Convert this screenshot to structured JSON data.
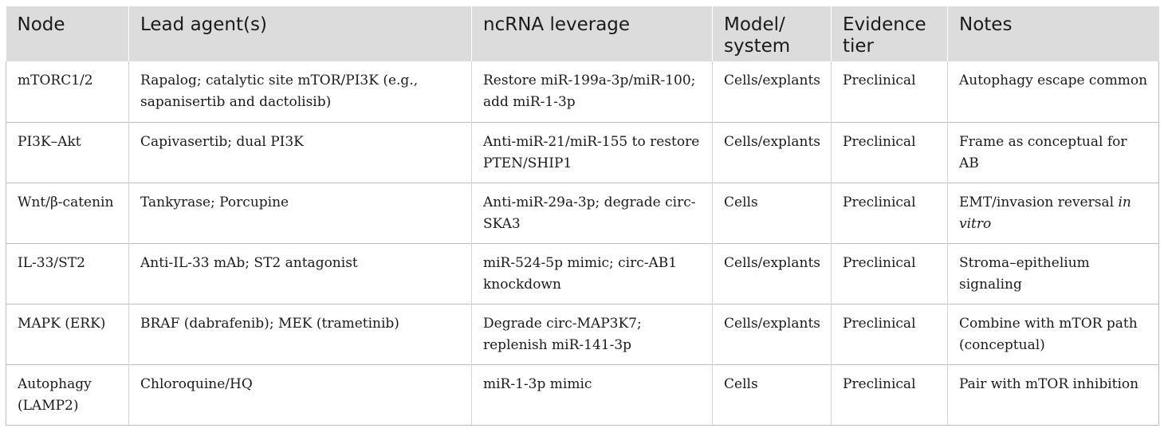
{
  "table": {
    "headers": [
      "Node",
      "Lead agent(s)",
      "ncRNA leverage",
      "Model/ system",
      "Evidence tier",
      "Notes"
    ],
    "rows": [
      {
        "node": "mTORC1/2",
        "lead_agents": "Rapalog; catalytic site mTOR/PI3K (e.g., sapanisertib and dactolisib)",
        "ncrna": "Restore miR-199a-3p/miR-100; add miR-1-3p",
        "model": "Cells/explants",
        "evidence": "Preclinical",
        "notes": "Autophagy escape common"
      },
      {
        "node": "PI3K–Akt",
        "lead_agents": "Capivasertib; dual PI3K",
        "ncrna": "Anti-miR-21/miR-155 to restore PTEN/SHIP1",
        "model": "Cells/explants",
        "evidence": "Preclinical",
        "notes": "Frame as conceptual for AB"
      },
      {
        "node": "Wnt/β-catenin",
        "lead_agents": "Tankyrase; Porcupine",
        "ncrna": "Anti-miR-29a-3p; degrade circ-SKA3",
        "model": "Cells",
        "evidence": "Preclinical",
        "notes": "EMT/invasion reversal ",
        "notes_italic": "in vitro"
      },
      {
        "node": "IL-33/ST2",
        "lead_agents": "Anti-IL-33 mAb; ST2 antagonist",
        "ncrna": "miR-524-5p mimic; circ-AB1 knockdown",
        "model": "Cells/explants",
        "evidence": "Preclinical",
        "notes": "Stroma–epithelium signaling"
      },
      {
        "node": "MAPK (ERK)",
        "lead_agents": "BRAF (dabrafenib); MEK (trametinib)",
        "ncrna": "Degrade circ-MAP3K7; replenish miR-141-3p",
        "model": "Cells/explants",
        "evidence": "Preclinical",
        "notes": "Combine with mTOR path (conceptual)"
      },
      {
        "node": "Autophagy (LAMP2)",
        "lead_agents": "Chloroquine/HQ",
        "ncrna": "miR-1-3p mimic",
        "model": "Cells",
        "evidence": "Preclinical",
        "notes": "Pair with mTOR inhibition"
      }
    ]
  }
}
